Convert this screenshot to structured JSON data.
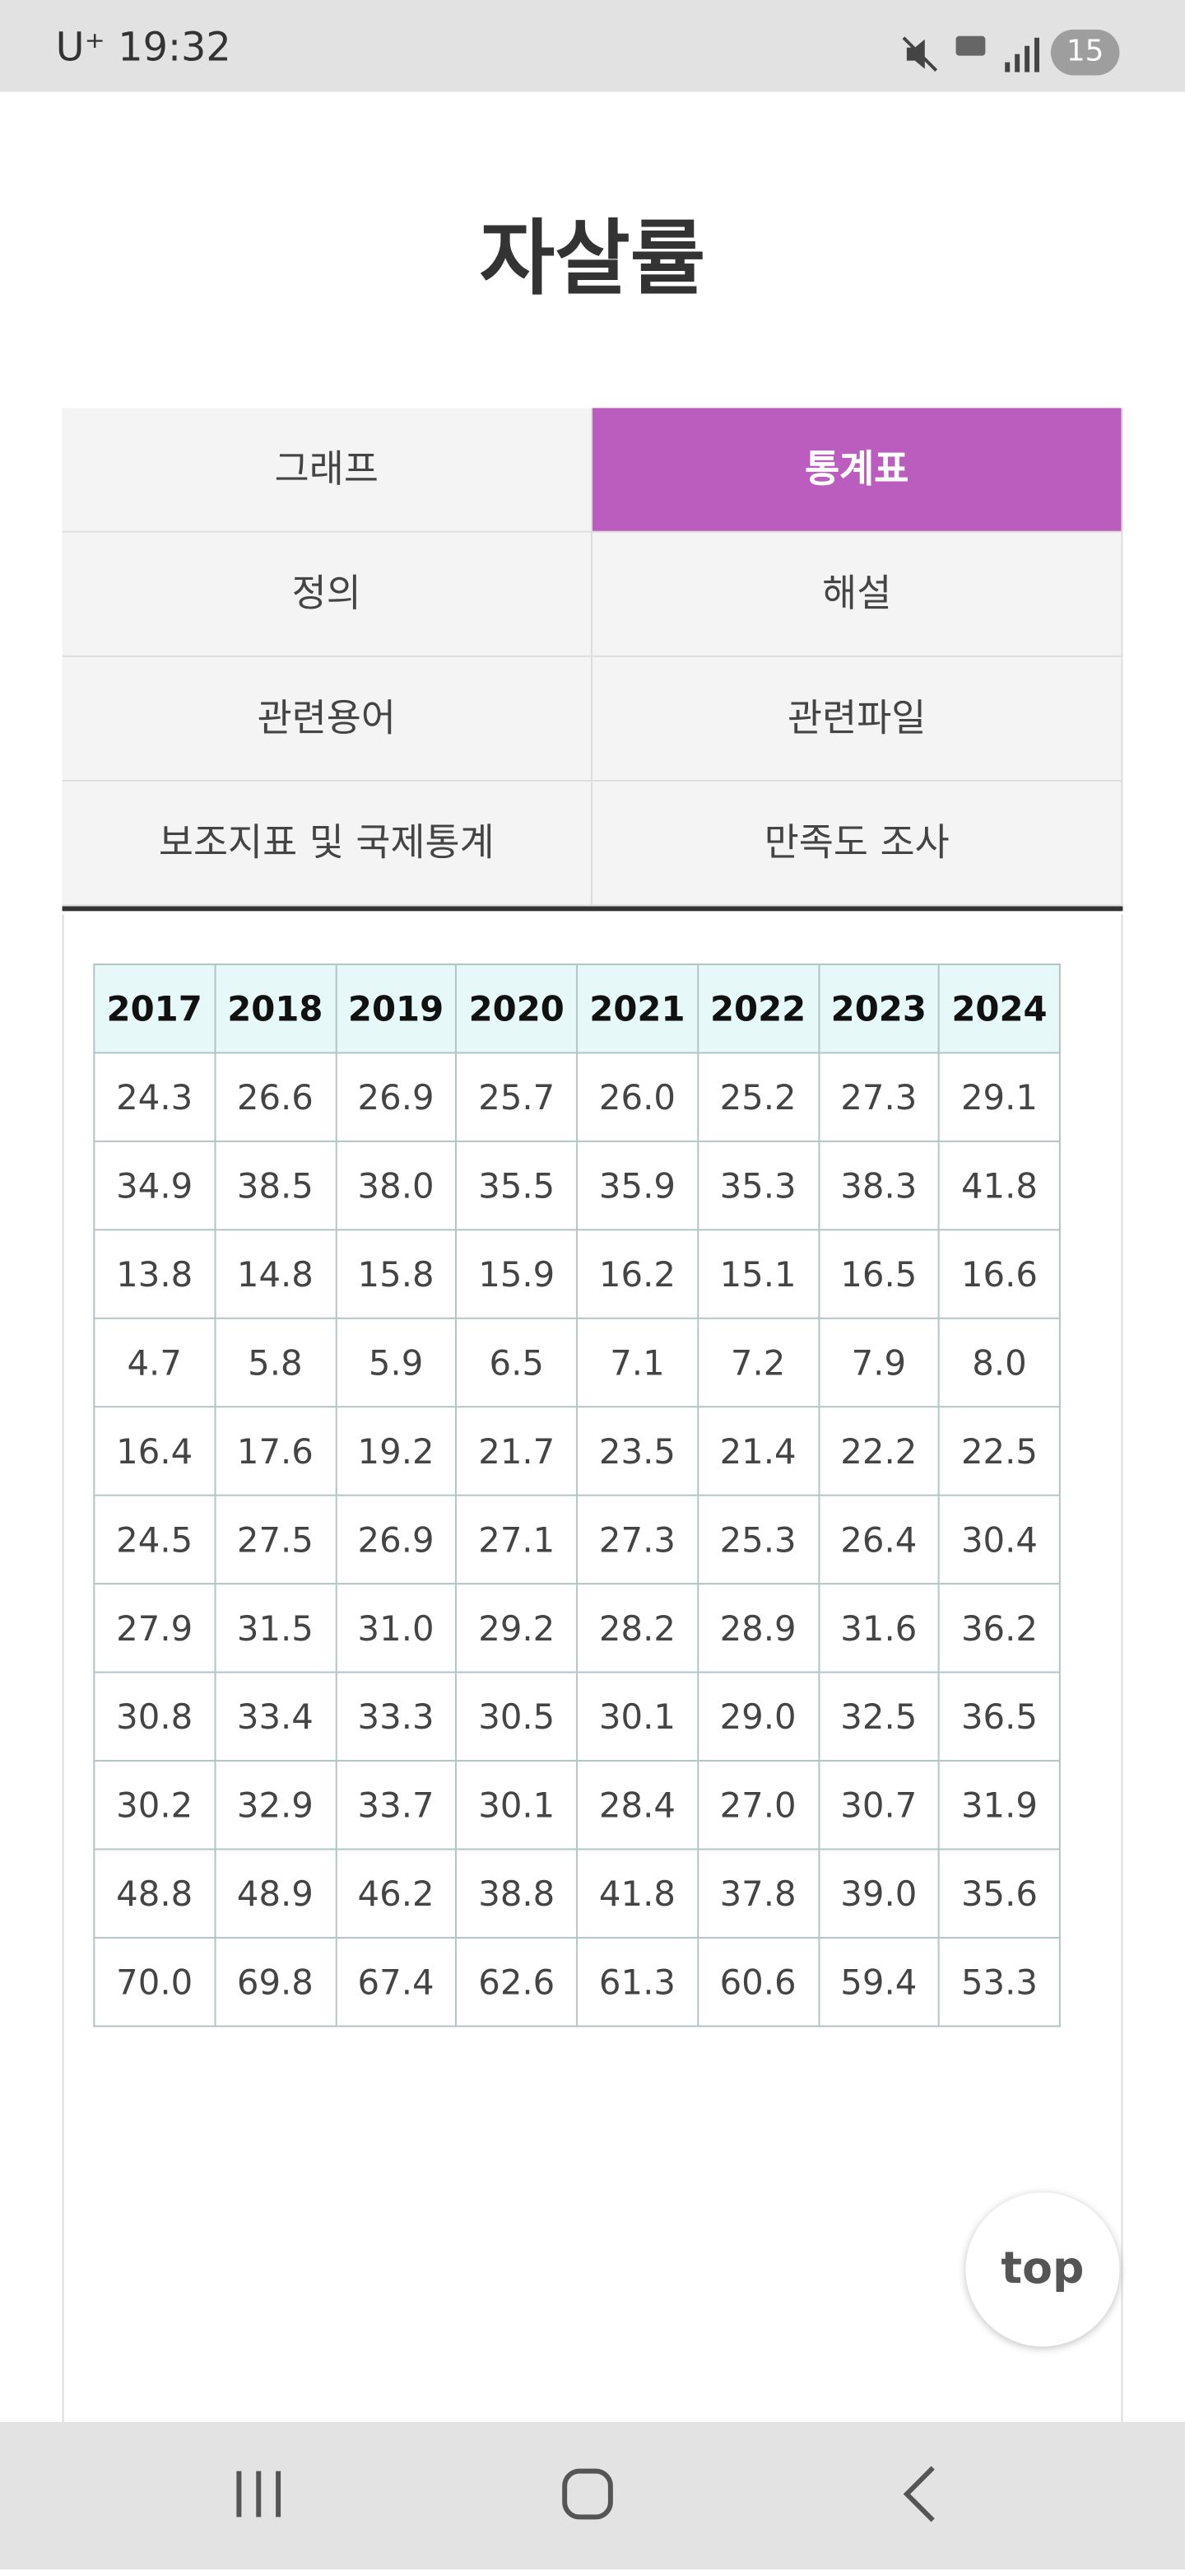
{
  "status_bar": {
    "carrier": "U⁺",
    "time": "19:32",
    "battery": "15"
  },
  "header": {
    "title": "자살률"
  },
  "tabs": [
    {
      "label": "그래프",
      "active": false
    },
    {
      "label": "통계표",
      "active": true
    },
    {
      "label": "정의",
      "active": false
    },
    {
      "label": "해설",
      "active": false
    },
    {
      "label": "관련용어",
      "active": false
    },
    {
      "label": "관련파일",
      "active": false
    },
    {
      "label": "보조지표 및 국제통계",
      "active": false
    },
    {
      "label": "만족도 조사",
      "active": false
    }
  ],
  "table": {
    "columns": [
      "2017",
      "2018",
      "2019",
      "2020",
      "2021",
      "2022",
      "2023",
      "2024"
    ],
    "rows": [
      [
        "24.3",
        "26.6",
        "26.9",
        "25.7",
        "26.0",
        "25.2",
        "27.3",
        "29.1"
      ],
      [
        "34.9",
        "38.5",
        "38.0",
        "35.5",
        "35.9",
        "35.3",
        "38.3",
        "41.8"
      ],
      [
        "13.8",
        "14.8",
        "15.8",
        "15.9",
        "16.2",
        "15.1",
        "16.5",
        "16.6"
      ],
      [
        "4.7",
        "5.8",
        "5.9",
        "6.5",
        "7.1",
        "7.2",
        "7.9",
        "8.0"
      ],
      [
        "16.4",
        "17.6",
        "19.2",
        "21.7",
        "23.5",
        "21.4",
        "22.2",
        "22.5"
      ],
      [
        "24.5",
        "27.5",
        "26.9",
        "27.1",
        "27.3",
        "25.3",
        "26.4",
        "30.4"
      ],
      [
        "27.9",
        "31.5",
        "31.0",
        "29.2",
        "28.2",
        "28.9",
        "31.6",
        "36.2"
      ],
      [
        "30.8",
        "33.4",
        "33.3",
        "30.5",
        "30.1",
        "29.0",
        "32.5",
        "36.5"
      ],
      [
        "30.2",
        "32.9",
        "33.7",
        "30.1",
        "28.4",
        "27.0",
        "30.7",
        "31.9"
      ],
      [
        "48.8",
        "48.9",
        "46.2",
        "38.8",
        "41.8",
        "37.8",
        "39.0",
        "35.6"
      ],
      [
        "70.0",
        "69.8",
        "67.4",
        "62.6",
        "61.3",
        "60.6",
        "59.4",
        "53.3"
      ]
    ]
  },
  "top_button": "top"
}
